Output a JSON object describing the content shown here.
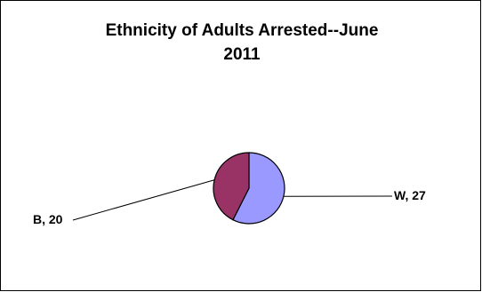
{
  "chart_data": {
    "type": "pie",
    "title_lines": [
      "Ethnicity of Adults Arrested--June",
      "2011"
    ],
    "slices": [
      {
        "label": "W",
        "value": 27,
        "color": "#9999ff"
      },
      {
        "label": "B",
        "value": 20,
        "color": "#993366"
      }
    ],
    "data_labels": [
      "W, 27",
      "B, 20"
    ]
  }
}
